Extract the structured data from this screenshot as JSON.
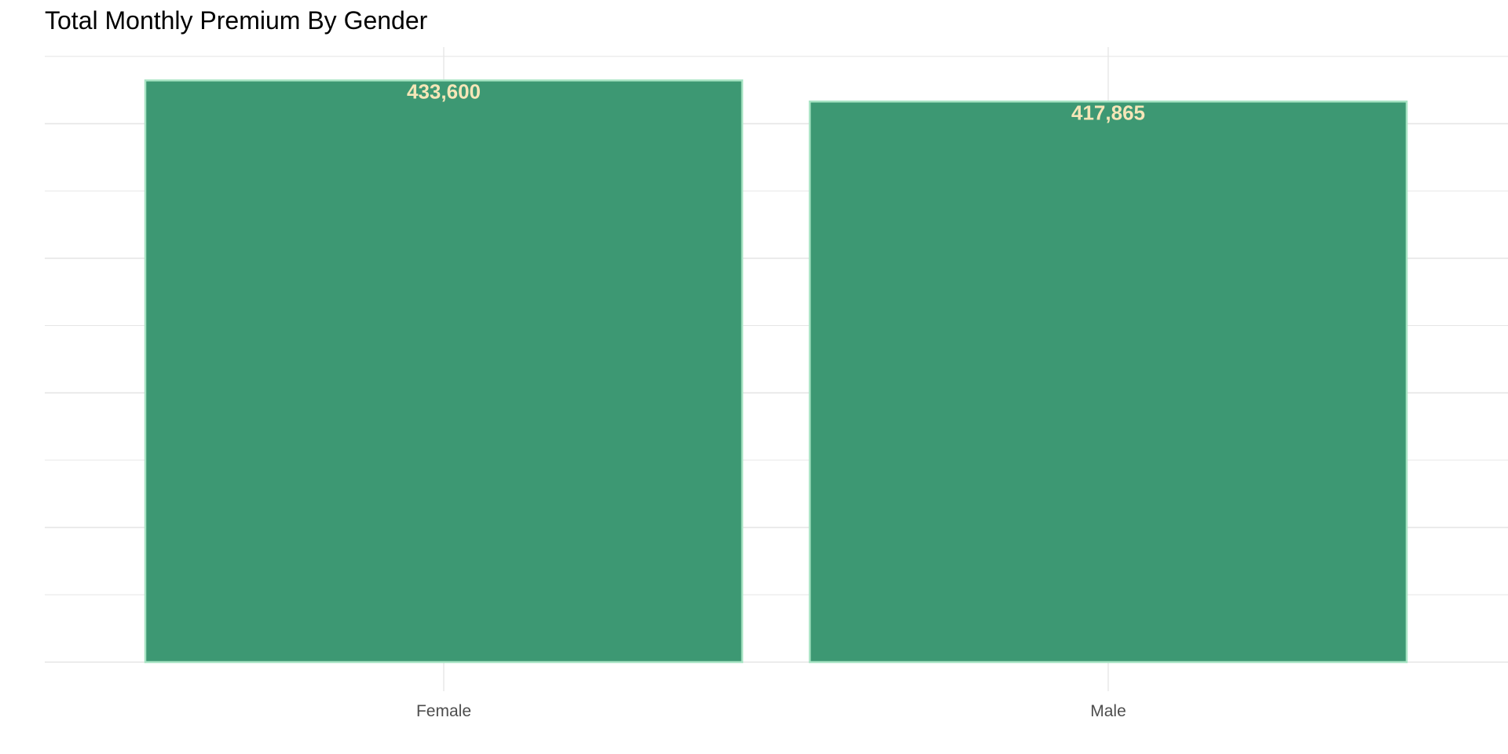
{
  "chart_data": {
    "type": "bar",
    "title": "Total Monthly Premium By Gender",
    "xlabel": "",
    "ylabel": "",
    "categories": [
      "Female",
      "Male"
    ],
    "values": [
      433600,
      417865
    ],
    "value_labels": [
      "433,600",
      "417,865"
    ],
    "ylim": [
      0,
      435000
    ],
    "grid": true,
    "legend": "none"
  },
  "colors": {
    "bar_fill": "#3d9873",
    "bar_outline": "#a8e4c4",
    "value_label": "#f5e6b8",
    "grid": "#e6e6e6",
    "tick_label": "#4d4d4d",
    "title": "#000000"
  }
}
